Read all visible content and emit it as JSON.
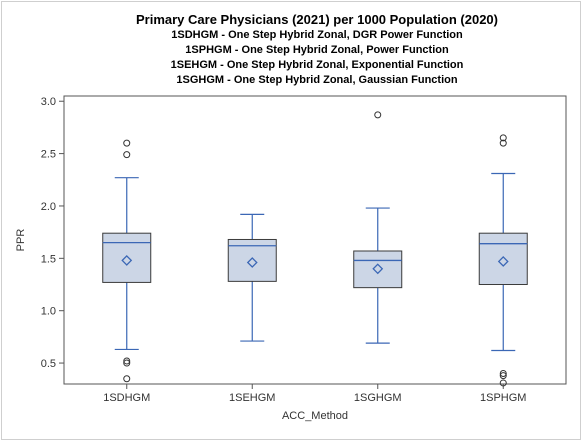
{
  "titles": {
    "main": "Primary Care Physicians (2021) per 1000 Population (2020)",
    "lines": [
      "1SDHGM - One Step Hybrid Zonal, DGR Power Function",
      "1SPHGM - One Step Hybrid Zonal, Power Function",
      "1SEHGM - One Step Hybrid Zonal, Exponential Function",
      "1SGHGM - One Step Hybrid Zonal, Gaussian Function"
    ]
  },
  "colors": {
    "box_fill": "#ccd6e6",
    "box_stroke": "#3a3a3a",
    "whisker": "#3b67b5",
    "median": "#3b67b5",
    "mean_marker": "#3b67b5",
    "outlier": "#333333",
    "axis": "#555555"
  },
  "chart_data": {
    "type": "boxplot",
    "xlabel": "ACC_Method",
    "ylabel": "PPR",
    "ylim": [
      0.3,
      3.05
    ],
    "yticks": [
      0.5,
      1.0,
      1.5,
      2.0,
      2.5,
      3.0
    ],
    "ytick_labels": [
      "0.5",
      "1.0",
      "1.5",
      "2.0",
      "2.5",
      "3.0"
    ],
    "grid": false,
    "categories": [
      "1SDHGM",
      "1SEHGM",
      "1SGHGM",
      "1SPHGM"
    ],
    "boxes": [
      {
        "category": "1SDHGM",
        "whisker_low": 0.63,
        "q1": 1.27,
        "median": 1.65,
        "q3": 1.74,
        "whisker_high": 2.27,
        "mean": 1.48,
        "outliers": [
          2.6,
          2.49,
          0.52,
          0.5,
          0.35
        ]
      },
      {
        "category": "1SEHGM",
        "whisker_low": 0.71,
        "q1": 1.28,
        "median": 1.62,
        "q3": 1.68,
        "whisker_high": 1.92,
        "mean": 1.46,
        "outliers": []
      },
      {
        "category": "1SGHGM",
        "whisker_low": 0.69,
        "q1": 1.22,
        "median": 1.48,
        "q3": 1.57,
        "whisker_high": 1.98,
        "mean": 1.4,
        "outliers": [
          2.87
        ]
      },
      {
        "category": "1SPHGM",
        "whisker_low": 0.62,
        "q1": 1.25,
        "median": 1.64,
        "q3": 1.74,
        "whisker_high": 2.31,
        "mean": 1.47,
        "outliers": [
          2.65,
          2.6,
          0.4,
          0.38,
          0.31
        ]
      }
    ]
  }
}
